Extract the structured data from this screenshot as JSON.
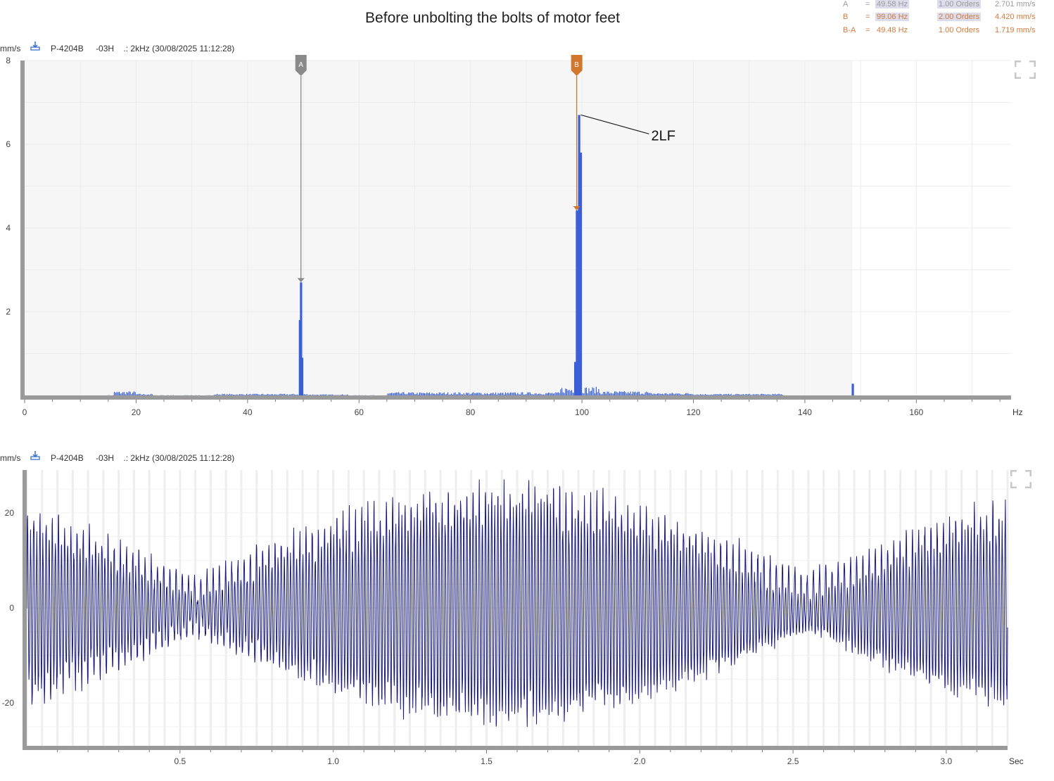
{
  "title": "Before unbolting the bolts of motor feet",
  "cursor_table": [
    {
      "name": "A",
      "eq": "=",
      "hz": "49.58 Hz",
      "orders": "1.00 Orders",
      "value": "2.701 mm/s"
    },
    {
      "name": "B",
      "eq": "=",
      "hz": "99.06 Hz",
      "orders": "2.00 Orders",
      "value": "4.420 mm/s"
    },
    {
      "name": "B-A",
      "eq": "=",
      "hz": "49.48 Hz",
      "orders": "1.00 Orders",
      "value": "1.719 mm/s"
    }
  ],
  "spectrum_header": {
    "unit": "mm/s",
    "sensor": "P-4204B",
    "point": "-03H",
    "info": ".: 2kHz (30/08/2025 11:12:28)"
  },
  "waveform_header": {
    "unit": "mm/s",
    "sensor": "P-4204B",
    "point": "-03H",
    "info": ".: 2kHz (30/08/2025 11:12:28)"
  },
  "icons": {
    "download": "download-icon",
    "expand": "expand-icon"
  },
  "colors": {
    "spectrum": "#3a5fd6",
    "waveform": "#1a1a7a",
    "cursor_a": "#8a8a8a",
    "cursor_b": "#d2782e"
  },
  "chart_data": [
    {
      "type": "bar",
      "name": "spectrum",
      "xlabel": "Hz",
      "ylabel": "mm/s",
      "xlim": [
        0,
        177
      ],
      "ylim": [
        0,
        8
      ],
      "xticks": [
        0,
        20,
        40,
        60,
        80,
        100,
        120,
        140,
        160
      ],
      "yticks": [
        2,
        4,
        6,
        8
      ],
      "grid": true,
      "peaks": [
        {
          "x": 49.6,
          "y": 2.7
        },
        {
          "x": 49.4,
          "y": 1.8
        },
        {
          "x": 49.8,
          "y": 0.9
        },
        {
          "x": 99.1,
          "y": 4.42
        },
        {
          "x": 99.5,
          "y": 6.7
        },
        {
          "x": 99.8,
          "y": 5.8
        },
        {
          "x": 98.8,
          "y": 0.8
        },
        {
          "x": 148.6,
          "y": 0.28
        }
      ],
      "cursors": [
        {
          "label": "A",
          "x": 49.58,
          "y": 2.701
        },
        {
          "label": "B",
          "x": 99.06,
          "y": 4.42
        }
      ],
      "annotation": {
        "text": "2LF",
        "x": 99.8,
        "y": 6.7
      }
    },
    {
      "type": "line",
      "name": "waveform",
      "xlabel": "Sec",
      "ylabel": "mm/s",
      "xlim": [
        0,
        3.2
      ],
      "ylim": [
        -29,
        29
      ],
      "xticks": [
        0.5,
        1.0,
        1.5,
        2.0,
        2.5,
        3.0
      ],
      "yticks": [
        -20,
        0,
        20
      ],
      "grid": true,
      "signal": {
        "frequency_hz": 99.06,
        "beat_period_s": 2.0,
        "amplitude_max": 22,
        "amplitude_min": 4
      }
    }
  ]
}
